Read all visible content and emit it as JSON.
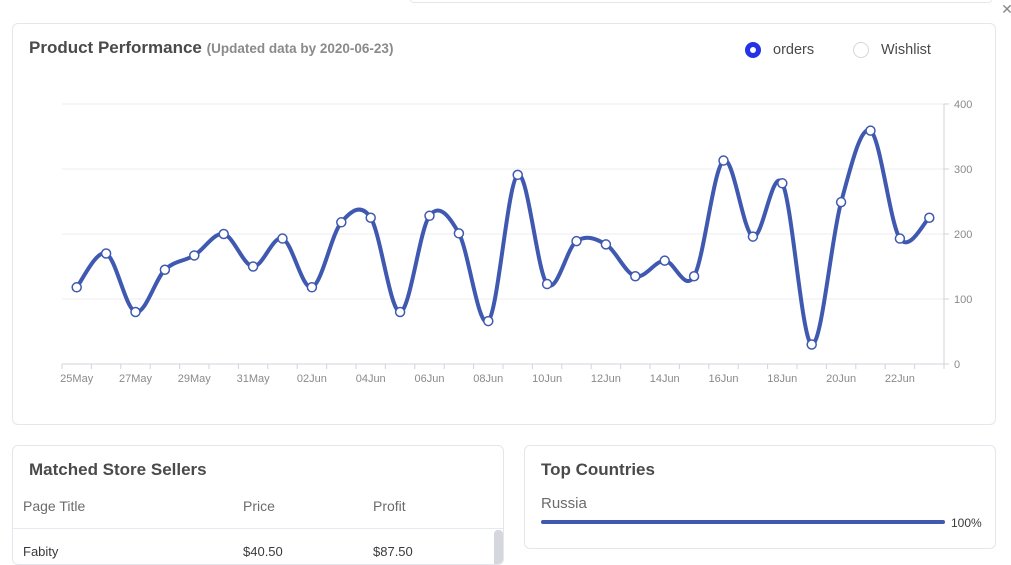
{
  "performance": {
    "title": "Product Performance",
    "subtitle": "(Updated data by 2020-06-23)",
    "legend": [
      {
        "label": "orders",
        "selected": true
      },
      {
        "label": "Wishlist",
        "selected": false
      }
    ]
  },
  "chart_data": {
    "type": "line",
    "x": [
      "25May",
      "26May",
      "27May",
      "28May",
      "29May",
      "30May",
      "31May",
      "01Jun",
      "02Jun",
      "03Jun",
      "04Jun",
      "05Jun",
      "06Jun",
      "07Jun",
      "08Jun",
      "09Jun",
      "10Jun",
      "11Jun",
      "12Jun",
      "13Jun",
      "14Jun",
      "15Jun",
      "16Jun",
      "17Jun",
      "18Jun",
      "19Jun",
      "20Jun",
      "21Jun",
      "22Jun",
      "23Jun"
    ],
    "xtick_labels": [
      "25May",
      "27May",
      "29May",
      "31May",
      "02Jun",
      "04Jun",
      "06Jun",
      "08Jun",
      "10Jun",
      "12Jun",
      "14Jun",
      "16Jun",
      "18Jun",
      "20Jun",
      "22Jun"
    ],
    "series": [
      {
        "name": "orders",
        "color": "#3f59b0",
        "values": [
          118,
          170,
          80,
          145,
          167,
          200,
          150,
          193,
          118,
          218,
          225,
          80,
          228,
          201,
          66,
          291,
          123,
          189,
          184,
          135,
          159,
          135,
          313,
          196,
          278,
          30,
          249,
          359,
          193,
          225
        ]
      }
    ],
    "ylim": [
      0,
      400
    ],
    "yticks": [
      0,
      100,
      200,
      300,
      400
    ],
    "grid": true,
    "yaxis_position": "right"
  },
  "sellers": {
    "title": "Matched Store Sellers",
    "columns": [
      "Page Title",
      "Price",
      "Profit"
    ],
    "rows": [
      [
        "Fabity",
        "$40.50",
        "$87.50"
      ]
    ]
  },
  "countries": {
    "title": "Top Countries",
    "items": [
      {
        "name": "Russia",
        "percent": 100,
        "percent_label": "100%"
      }
    ],
    "bar_color": "#3f59b0"
  }
}
